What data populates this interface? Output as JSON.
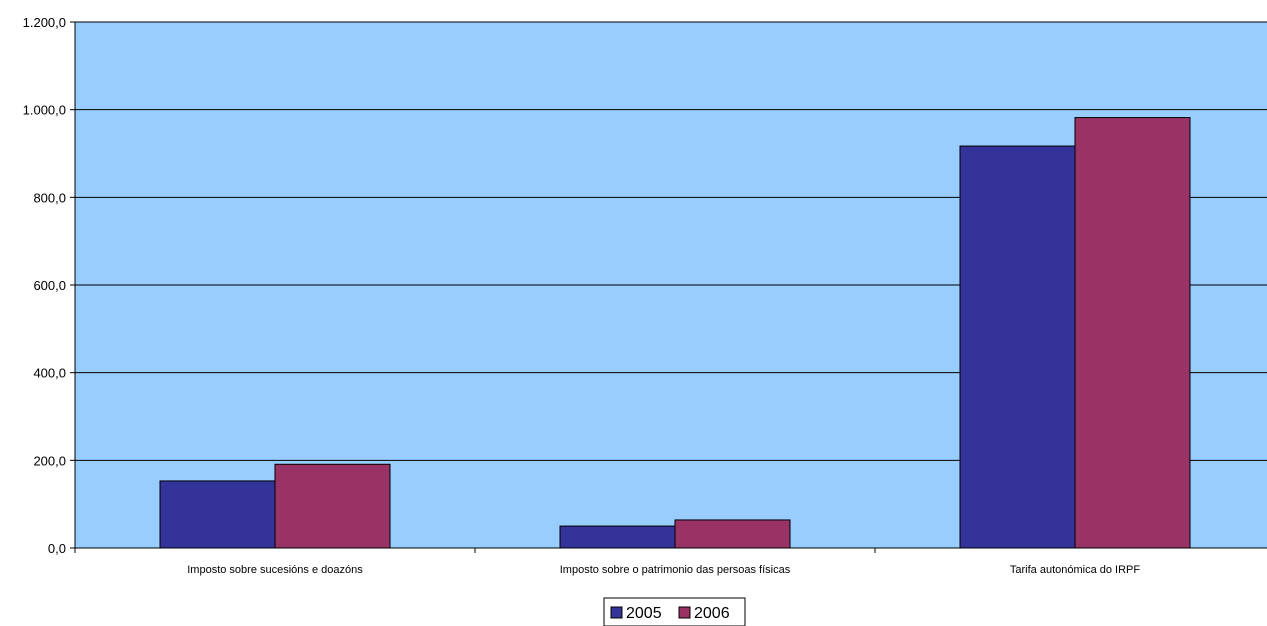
{
  "chart_data": {
    "type": "bar",
    "categories": [
      "Imposto sobre sucesións e doazóns",
      "Imposto sobre o patrimonio das persoas físicas",
      "Tarifa autonómica do IRPF"
    ],
    "series": [
      {
        "name": "2005",
        "values": [
          153,
          50,
          917
        ],
        "color": "#333399"
      },
      {
        "name": "2006",
        "values": [
          191,
          64,
          982
        ],
        "color": "#993366"
      }
    ],
    "ylim": [
      0,
      1200
    ],
    "yticks": [
      0,
      200,
      400,
      600,
      800,
      1000,
      1200
    ],
    "ytick_labels": [
      "0,0",
      "200,0",
      "400,0",
      "600,0",
      "800,0",
      "1.000,0",
      "1.200,0"
    ],
    "grid": true,
    "legend_position": "bottom",
    "plot_background": "#99ccff"
  }
}
